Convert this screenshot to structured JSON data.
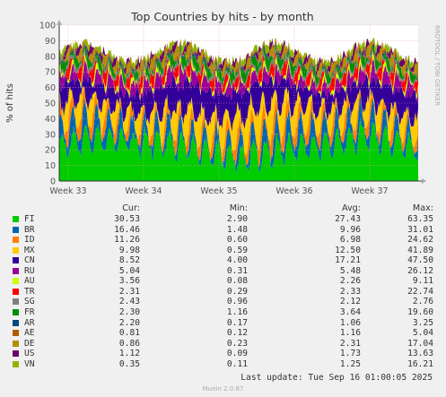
{
  "chart_data": {
    "type": "area",
    "title": "Top Countries by hits - by month",
    "ylabel": "% of hits",
    "ylim": [
      0,
      100
    ],
    "y_ticks": [
      0,
      10,
      20,
      30,
      40,
      50,
      60,
      70,
      80,
      90,
      100
    ],
    "x_ticks": [
      "Week 33",
      "Week 34",
      "Week 35",
      "Week 36",
      "Week 37"
    ],
    "grid": true,
    "side_label": "RRDTOOL / TOBI OETIKER",
    "columns": [
      "Cur:",
      "Min:",
      "Avg:",
      "Max:"
    ],
    "series": [
      {
        "name": "FI",
        "color": "#00cc00",
        "cur": "30.53",
        "min": "2.90",
        "avg": "27.43",
        "max": "63.35"
      },
      {
        "name": "BR",
        "color": "#0066b3",
        "cur": "16.46",
        "min": "1.48",
        "avg": "9.96",
        "max": "31.01"
      },
      {
        "name": "ID",
        "color": "#ff8000",
        "cur": "11.26",
        "min": "0.60",
        "avg": "6.98",
        "max": "24.62"
      },
      {
        "name": "MX",
        "color": "#ffcc00",
        "cur": "9.98",
        "min": "0.59",
        "avg": "12.50",
        "max": "41.89"
      },
      {
        "name": "CN",
        "color": "#330099",
        "cur": "8.52",
        "min": "4.00",
        "avg": "17.21",
        "max": "47.50"
      },
      {
        "name": "RU",
        "color": "#990099",
        "cur": "5.04",
        "min": "0.31",
        "avg": "5.48",
        "max": "26.12"
      },
      {
        "name": "AU",
        "color": "#ccff00",
        "cur": "3.56",
        "min": "0.08",
        "avg": "2.26",
        "max": "9.11"
      },
      {
        "name": "TR",
        "color": "#ff0000",
        "cur": "2.31",
        "min": "0.29",
        "avg": "2.33",
        "max": "22.74"
      },
      {
        "name": "SG",
        "color": "#808080",
        "cur": "2.43",
        "min": "0.96",
        "avg": "2.12",
        "max": "2.76"
      },
      {
        "name": "FR",
        "color": "#008f00",
        "cur": "2.30",
        "min": "1.16",
        "avg": "3.64",
        "max": "19.60"
      },
      {
        "name": "AR",
        "color": "#00487d",
        "cur": "2.20",
        "min": "0.17",
        "avg": "1.06",
        "max": "3.25"
      },
      {
        "name": "AE",
        "color": "#b35a00",
        "cur": "0.81",
        "min": "0.12",
        "avg": "1.16",
        "max": "5.04"
      },
      {
        "name": "DE",
        "color": "#b38f00",
        "cur": "0.86",
        "min": "0.23",
        "avg": "2.31",
        "max": "17.04"
      },
      {
        "name": "US",
        "color": "#6b006b",
        "cur": "1.12",
        "min": "0.09",
        "avg": "1.73",
        "max": "13.63"
      },
      {
        "name": "VN",
        "color": "#8fb300",
        "cur": "0.35",
        "min": "0.11",
        "avg": "1.25",
        "max": "16.21"
      }
    ]
  },
  "footer": {
    "last_update": "Last update: Tue Sep 16 01:00:05 2025",
    "generator": "Munin 2.0.67"
  }
}
